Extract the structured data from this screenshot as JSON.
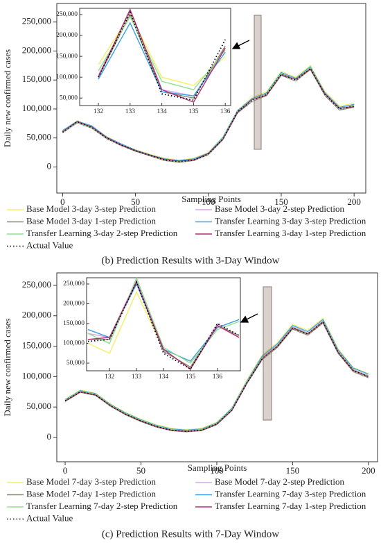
{
  "chart_data": [
    {
      "type": "line",
      "caption": "(b) Prediction Results with 3-Day Window",
      "x_label": "Sampling Points",
      "y_label": "Daily new confirmed cases",
      "x": [
        0,
        10,
        20,
        30,
        40,
        50,
        60,
        70,
        80,
        90,
        100,
        110,
        120,
        130,
        140,
        150,
        160,
        170,
        180,
        190,
        200
      ],
      "xlim": [
        -4,
        208
      ],
      "ylim": [
        -45000,
        282000
      ],
      "xticks": [
        0,
        50,
        100,
        150,
        200
      ],
      "yticks": [
        0,
        {
          "value": 50000,
          "label": "50,000"
        },
        {
          "value": 100000,
          "label": "100,000"
        },
        {
          "value": 150000,
          "label": "150,000"
        },
        {
          "value": 200000,
          "label": "200,000"
        },
        {
          "value": 250000,
          "label": "250,000"
        }
      ],
      "series": [
        {
          "name": "Base Model 3-day 3-step Prediction",
          "color": "#f2f060",
          "values": [
            62000,
            80000,
            70000,
            53000,
            40000,
            30000,
            22000,
            15000,
            12000,
            15000,
            25000,
            52000,
            98000,
            120000,
            130000,
            165000,
            155000,
            175000,
            130000,
            105000,
            110000
          ]
        },
        {
          "name": "Base Model 3-day 2-step Prediction",
          "color": "#d9a6e6",
          "values": [
            61000,
            77000,
            69000,
            51000,
            39000,
            29000,
            21000,
            13000,
            10000,
            13000,
            23000,
            50000,
            96000,
            117000,
            127000,
            162000,
            152000,
            172000,
            127000,
            102000,
            107000
          ]
        },
        {
          "name": "Base Model 3-day 1-step Prediction",
          "color": "#8a8a70",
          "values": [
            59000,
            76000,
            67000,
            49000,
            37000,
            27000,
            19000,
            11000,
            8000,
            11000,
            21000,
            47000,
            93000,
            113000,
            123000,
            158000,
            148000,
            168000,
            123000,
            98000,
            103000
          ]
        },
        {
          "name": "Transfer Learning 3-day 3-step Prediction",
          "color": "#3aa0e8",
          "values": [
            63000,
            79000,
            71000,
            52000,
            40000,
            29000,
            21000,
            14000,
            11000,
            14000,
            24000,
            51000,
            97000,
            118000,
            128000,
            163000,
            153000,
            173000,
            128000,
            103000,
            108000
          ]
        },
        {
          "name": "Transfer Learning 3-day 2-step Prediction",
          "color": "#90e090",
          "values": [
            60000,
            77000,
            68000,
            50000,
            38000,
            28000,
            20000,
            12000,
            9000,
            12000,
            22000,
            49000,
            95000,
            116000,
            126000,
            161000,
            151000,
            171000,
            126000,
            101000,
            106000
          ]
        },
        {
          "name": "Transfer Learning 3-day 1-step Prediction",
          "color": "#b0306e",
          "values": [
            61000,
            78000,
            69000,
            51000,
            38000,
            28000,
            20000,
            13000,
            10000,
            12000,
            23000,
            48000,
            94000,
            116000,
            124000,
            159000,
            151000,
            169000,
            126000,
            101000,
            104000
          ]
        },
        {
          "name": "Actual Value",
          "color": "#000000",
          "dashed": true,
          "values": [
            60000,
            78000,
            68000,
            50000,
            38000,
            28000,
            20000,
            12000,
            9000,
            12000,
            22000,
            48000,
            95000,
            115000,
            125000,
            160000,
            150000,
            170000,
            125000,
            100000,
            105000
          ]
        }
      ],
      "inset": {
        "x": [
          132,
          133,
          134,
          135,
          136
        ],
        "xlim": [
          131.41,
          136.17
        ],
        "ylim": [
          32000,
          265000
        ],
        "xticks": [
          132,
          133,
          134,
          135,
          136
        ],
        "yticks": [
          {
            "value": 50000,
            "label": "50,000"
          },
          {
            "value": 100000,
            "label": "100,000"
          },
          {
            "value": 150000,
            "label": "150,000"
          },
          {
            "value": 200000,
            "label": "200,000"
          },
          {
            "value": 250000,
            "label": "250,000"
          }
        ],
        "series": [
          {
            "values": [
              130000,
              250000,
              100000,
              80000,
              150000
            ]
          },
          {
            "values": [
              105000,
              258000,
              70000,
              55000,
              170000
            ]
          },
          {
            "values": [
              100000,
              250000,
              65000,
              50000,
              175000
            ]
          },
          {
            "values": [
              95000,
              230000,
              65000,
              55000,
              160000
            ]
          },
          {
            "values": [
              115000,
              245000,
              90000,
              70000,
              165000
            ]
          },
          {
            "values": [
              100000,
              262000,
              70000,
              40000,
              170000
            ]
          },
          {
            "values": [
              100000,
              255000,
              60000,
              45000,
              190000
            ]
          }
        ]
      }
    },
    {
      "type": "line",
      "caption": "(c) Prediction Results with 7-Day Window",
      "x_label": "Sampling Points",
      "y_label": "Daily new confirmed cases",
      "x": [
        0,
        10,
        20,
        30,
        40,
        50,
        60,
        70,
        80,
        90,
        100,
        110,
        120,
        130,
        140,
        150,
        160,
        170,
        180,
        190,
        200
      ],
      "xlim": [
        -5.5,
        206
      ],
      "ylim": [
        -40000,
        270500
      ],
      "xticks": [
        0,
        50,
        100,
        150,
        200
      ],
      "yticks": [
        0,
        {
          "value": 50000,
          "label": "50,000"
        },
        {
          "value": 100000,
          "label": "100,000"
        },
        {
          "value": 150000,
          "label": "150,000"
        },
        {
          "value": 200000,
          "label": "200,000"
        },
        {
          "value": 250000,
          "label": "250,000"
        }
      ],
      "series": [
        {
          "name": "Base Model 7-day 3-step Prediction",
          "color": "#f2f060",
          "values": [
            63000,
            78000,
            73000,
            55000,
            41000,
            30000,
            21000,
            15000,
            13000,
            15000,
            25000,
            49000,
            95000,
            136000,
            156000,
            186000,
            176000,
            196000,
            146000,
            115000,
            105000
          ]
        },
        {
          "name": "Base Model 7-day 2-step Prediction",
          "color": "#d9a6e6",
          "values": [
            61000,
            76000,
            71000,
            53000,
            39000,
            28000,
            19000,
            13000,
            11000,
            13000,
            23000,
            46000,
            92000,
            132000,
            152000,
            182000,
            172000,
            192000,
            142000,
            112000,
            102000
          ]
        },
        {
          "name": "Base Model 7-day 1-step Prediction",
          "color": "#8a8a70",
          "values": [
            59000,
            74000,
            69000,
            51000,
            37000,
            26000,
            17000,
            11000,
            9000,
            11000,
            21000,
            44000,
            89000,
            128000,
            148000,
            178000,
            168000,
            188000,
            138000,
            108000,
            98000
          ]
        },
        {
          "name": "Transfer Learning 7-day 3-step Prediction",
          "color": "#3aa0e8",
          "values": [
            62000,
            77000,
            72000,
            54000,
            40000,
            29000,
            20000,
            14000,
            12000,
            14000,
            24000,
            48000,
            93000,
            134000,
            154000,
            184000,
            174000,
            194000,
            144000,
            114000,
            104000
          ]
        },
        {
          "name": "Transfer Learning 7-day 2-step Prediction",
          "color": "#90e090",
          "values": [
            61000,
            76000,
            71000,
            53000,
            39000,
            28000,
            19000,
            13000,
            11000,
            13000,
            23000,
            46000,
            91000,
            131000,
            151000,
            181000,
            171000,
            191000,
            141000,
            111000,
            101000
          ]
        },
        {
          "name": "Transfer Learning 7-day 1-step Prediction",
          "color": "#b0306e",
          "values": [
            60000,
            75000,
            70000,
            52000,
            38000,
            27000,
            18000,
            12000,
            10000,
            12000,
            22000,
            45000,
            90000,
            130000,
            150000,
            180000,
            170000,
            190000,
            140000,
            110000,
            100000
          ]
        },
        {
          "name": "Actual Value",
          "color": "#000000",
          "dashed": true,
          "values": [
            60000,
            75000,
            70000,
            52000,
            38000,
            27000,
            18000,
            12000,
            10000,
            12000,
            22000,
            45000,
            90000,
            130000,
            150000,
            180000,
            170000,
            190000,
            140000,
            110000,
            100000
          ]
        }
      ],
      "inset": {
        "x": [
          131.2,
          132,
          133,
          134,
          135,
          136,
          136.8
        ],
        "xlim": [
          131.15,
          136.85
        ],
        "ylim": [
          30700,
          265800
        ],
        "xticks": [
          132,
          133,
          134,
          135,
          136
        ],
        "yticks": [
          {
            "value": 50000,
            "label": "50,000"
          },
          {
            "value": 100000,
            "label": "100,000"
          },
          {
            "value": 150000,
            "label": "150,000"
          },
          {
            "value": 200000,
            "label": "200,000"
          },
          {
            "value": 250000,
            "label": "250,000"
          }
        ],
        "series": [
          {
            "values": [
              100000,
              75000,
              230000,
              85000,
              55000,
              140000,
              160000
            ]
          },
          {
            "values": [
              125000,
              115000,
              260000,
              80000,
              40000,
              150000,
              115000
            ]
          },
          {
            "values": [
              110000,
              110000,
              255000,
              80000,
              40000,
              145000,
              120000
            ]
          },
          {
            "values": [
              135000,
              115000,
              250000,
              85000,
              55000,
              140000,
              160000
            ]
          },
          {
            "values": [
              125000,
              100000,
              265000,
              90000,
              50000,
              135000,
              155000
            ]
          },
          {
            "values": [
              110000,
              115000,
              255000,
              85000,
              35000,
              145000,
              115000
            ]
          },
          {
            "values": [
              105000,
              110000,
              255000,
              75000,
              35000,
              150000,
              120000
            ]
          }
        ]
      }
    }
  ]
}
